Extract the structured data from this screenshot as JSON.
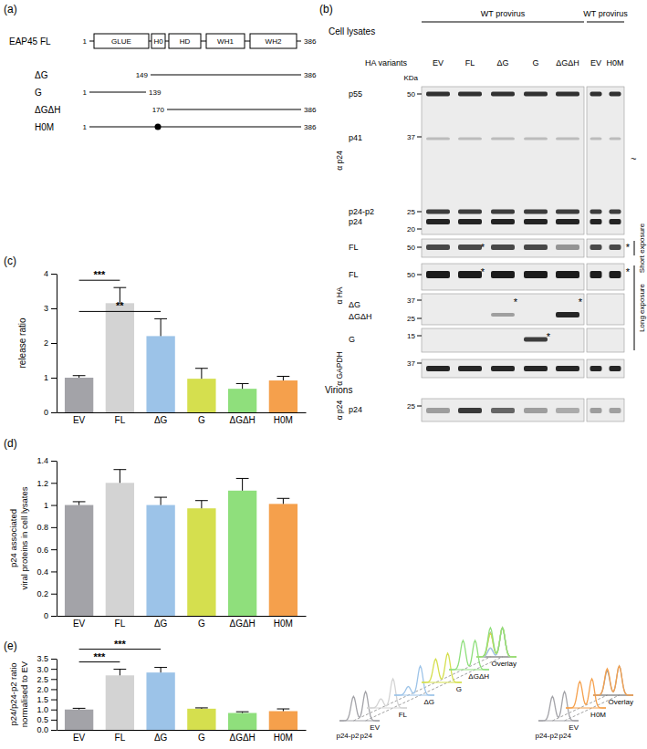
{
  "panel_labels": [
    "(a)",
    "(b)",
    "(c)",
    "(d)",
    "(e)"
  ],
  "domain_map": {
    "protein": "EAP45 FL",
    "start": 1,
    "end": 386,
    "domains": [
      "GLUE",
      "H0",
      "HD",
      "WH1",
      "WH2"
    ],
    "constructs": [
      {
        "name": "ΔG",
        "start": 149,
        "end": 386
      },
      {
        "name": "G",
        "start": 1,
        "end": 139
      },
      {
        "name": "ΔGΔH",
        "start": 170,
        "end": 386
      },
      {
        "name": "H0M",
        "start": 1,
        "end": 386
      }
    ]
  },
  "blots": {
    "title": "Cell lysates",
    "variants_label": "HA variants",
    "kda": "KDa",
    "star": "*",
    "gels": [
      {
        "header": "WT provirus",
        "lanes": [
          "EV",
          "FL",
          "ΔG",
          "G",
          "ΔGΔH"
        ]
      },
      {
        "header": "WT provirus",
        "lanes": [
          "EV",
          "H0M"
        ]
      }
    ],
    "groups": [
      {
        "antibody": "α p24",
        "rows": [
          {
            "markers": [
              50,
              37,
              25,
              20
            ],
            "labels": [
              "p55",
              "p41",
              "p24-p2",
              "p24"
            ],
            "side_mark": "~"
          }
        ]
      },
      {
        "antibody": "α HA",
        "rows": [
          {
            "markers": [
              50
            ],
            "labels": [
              "FL"
            ],
            "stars": [
              "FL",
              "H0M"
            ]
          },
          {
            "markers": [
              50
            ],
            "labels": [
              "FL"
            ],
            "stars": [
              "FL",
              "H0M"
            ]
          },
          {
            "markers": [
              37,
              25
            ],
            "labels": [
              "ΔG",
              "ΔGΔH"
            ],
            "stars": [
              "ΔG",
              "ΔGΔH"
            ]
          },
          {
            "markers": [
              15
            ],
            "labels": [
              "G"
            ],
            "stars": [
              "G"
            ]
          }
        ],
        "exposures": [
          {
            "text": "Short exposure",
            "rows": 1
          },
          {
            "text": "Long exposure",
            "rows": 3
          }
        ]
      },
      {
        "antibody": "α GAPDH",
        "rows": [
          {
            "markers": [
              37
            ]
          }
        ]
      },
      {
        "section": "Virions",
        "antibody": "α p24",
        "rows": [
          {
            "markers": [
              25
            ],
            "labels": [
              "p24"
            ]
          }
        ]
      }
    ]
  },
  "chart_data": [
    {
      "type": "bar",
      "ylabel": "release ratio",
      "categories": [
        "EV",
        "FL",
        "ΔG",
        "G",
        "ΔGΔH",
        "H0M"
      ],
      "values": [
        1.0,
        3.15,
        2.2,
        0.97,
        0.68,
        0.92
      ],
      "errors": [
        0.06,
        0.45,
        0.5,
        0.3,
        0.15,
        0.12
      ],
      "colors": [
        "#a3a3a8",
        "#d3d3d3",
        "#9cc3e8",
        "#d5df4e",
        "#8fdf7c",
        "#f5a04c"
      ],
      "ylim": [
        0,
        4
      ],
      "yticks": [
        0,
        1,
        2,
        3,
        4
      ],
      "significance": [
        {
          "pair": [
            "EV",
            "FL"
          ],
          "label": "***"
        },
        {
          "pair": [
            "EV",
            "ΔG"
          ],
          "label": "**"
        }
      ]
    },
    {
      "type": "bar",
      "ylabel": [
        "p24 associated",
        "viral proteins in cell lysates"
      ],
      "categories": [
        "EV",
        "FL",
        "ΔG",
        "G",
        "ΔGΔH",
        "H0M"
      ],
      "values": [
        1.0,
        1.2,
        1.0,
        0.97,
        1.13,
        1.01
      ],
      "errors": [
        0.03,
        0.12,
        0.07,
        0.07,
        0.11,
        0.05
      ],
      "colors": [
        "#a3a3a8",
        "#d3d3d3",
        "#9cc3e8",
        "#d5df4e",
        "#8fdf7c",
        "#f5a04c"
      ],
      "ylim": [
        0,
        1.4
      ],
      "yticks": [
        0,
        0.2,
        0.4,
        0.6,
        0.8,
        1,
        1.2,
        1.4
      ]
    },
    {
      "type": "bar",
      "ylabel": [
        "p24/p24-p2 ratio",
        "normalised to EV"
      ],
      "categories": [
        "EV",
        "FL",
        "ΔG",
        "G",
        "ΔGΔH",
        "H0M"
      ],
      "values": [
        1.0,
        2.68,
        2.82,
        1.04,
        0.83,
        0.92
      ],
      "errors": [
        0.06,
        0.3,
        0.25,
        0.04,
        0.06,
        0.11
      ],
      "colors": [
        "#a3a3a8",
        "#d3d3d3",
        "#9cc3e8",
        "#d5df4e",
        "#8fdf7c",
        "#f5a04c"
      ],
      "ylim": [
        0,
        3.5
      ],
      "yticks": [
        {
          "value": 0,
          "label": "0.0"
        },
        0.5,
        {
          "value": 1,
          "label": "1.0"
        },
        1.5,
        {
          "value": 2,
          "label": "2.0"
        },
        2.5,
        {
          "value": 3,
          "label": "3.0"
        },
        3.5
      ],
      "significance": [
        {
          "pair": [
            "EV",
            "FL"
          ],
          "label": "***"
        },
        {
          "pair": [
            "EV",
            "ΔG"
          ],
          "label": "***"
        }
      ]
    }
  ],
  "densitometry": {
    "groups": [
      {
        "profiles": [
          "EV",
          "FL",
          "ΔG",
          "G",
          "ΔGΔH"
        ],
        "overlay": "Overlay"
      },
      {
        "profiles": [
          "EV",
          "H0M"
        ],
        "overlay": "Overlay"
      }
    ],
    "peaks": [
      "p24-p2",
      "p24"
    ]
  }
}
